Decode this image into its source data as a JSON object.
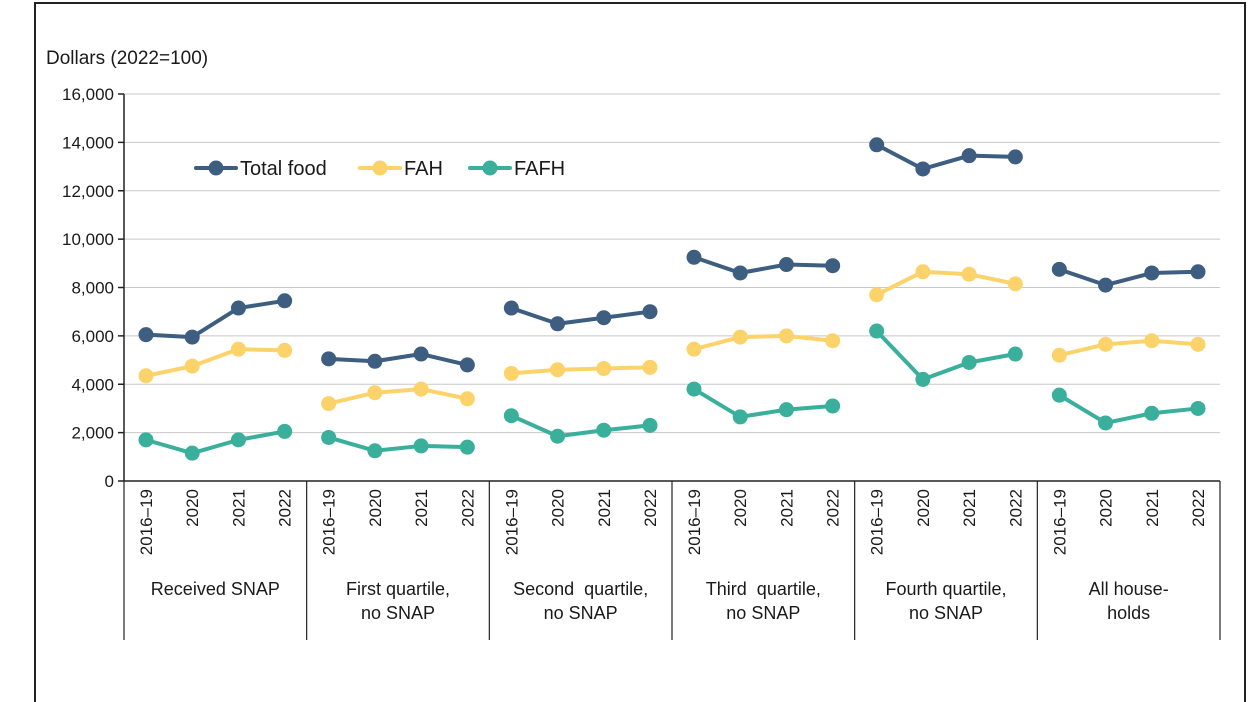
{
  "chart_data": {
    "type": "line",
    "ylabel": "Dollars (2022=100)",
    "ylim": [
      0,
      16000
    ],
    "yticks": [
      0,
      2000,
      4000,
      6000,
      8000,
      10000,
      12000,
      14000,
      16000
    ],
    "ytick_labels": [
      "0",
      "2,000",
      "4,000",
      "6,000",
      "8,000",
      "10,000",
      "12,000",
      "14,000",
      "16,000"
    ],
    "period_labels": [
      "2016–19",
      "2020",
      "2021",
      "2022"
    ],
    "groups": [
      {
        "label_lines": [
          "Received SNAP"
        ]
      },
      {
        "label_lines": [
          "First quartile,",
          "no SNAP"
        ]
      },
      {
        "label_lines": [
          "Second  quartile,",
          "no SNAP"
        ]
      },
      {
        "label_lines": [
          "Third  quartile,",
          "no SNAP"
        ]
      },
      {
        "label_lines": [
          "Fourth quartile,",
          "no SNAP"
        ]
      },
      {
        "label_lines": [
          "All house-",
          "holds"
        ]
      }
    ],
    "grid": true,
    "legend_position": "top-left",
    "series": [
      {
        "name": "Total food",
        "color": "#3d5e80",
        "values": [
          [
            6050,
            5950,
            7150,
            7450
          ],
          [
            5050,
            4950,
            5250,
            4800
          ],
          [
            7150,
            6500,
            6750,
            7000
          ],
          [
            9250,
            8600,
            8950,
            8900
          ],
          [
            13900,
            12900,
            13450,
            13400
          ],
          [
            8750,
            8100,
            8600,
            8650
          ]
        ]
      },
      {
        "name": "FAH",
        "color": "#fcd36b",
        "values": [
          [
            4350,
            4750,
            5450,
            5400
          ],
          [
            3200,
            3650,
            3800,
            3400
          ],
          [
            4450,
            4600,
            4650,
            4700
          ],
          [
            5450,
            5950,
            6000,
            5800
          ],
          [
            7700,
            8650,
            8550,
            8150
          ],
          [
            5200,
            5650,
            5800,
            5650
          ]
        ]
      },
      {
        "name": "FAFH",
        "color": "#3aaf9c",
        "values": [
          [
            1700,
            1150,
            1700,
            2050
          ],
          [
            1800,
            1250,
            1450,
            1400
          ],
          [
            2700,
            1850,
            2100,
            2300
          ],
          [
            3800,
            2650,
            2950,
            3100
          ],
          [
            6200,
            4200,
            4900,
            5250
          ],
          [
            3550,
            2400,
            2800,
            3000
          ]
        ]
      }
    ]
  }
}
